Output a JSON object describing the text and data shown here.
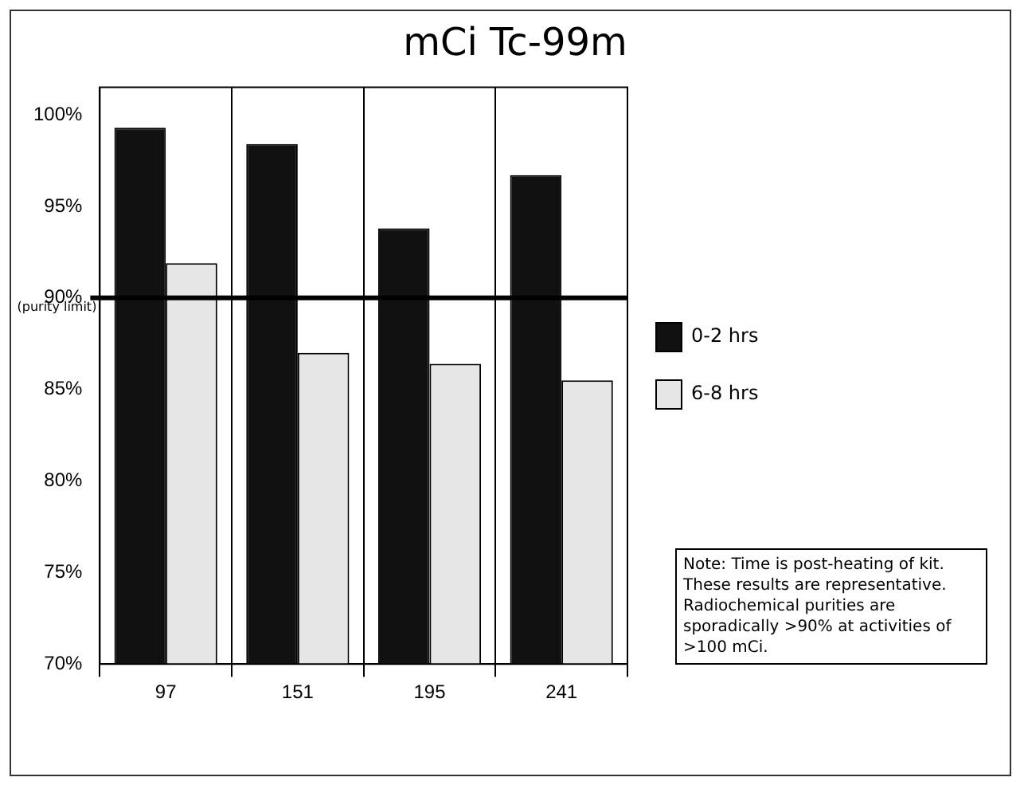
{
  "chart_data": {
    "type": "bar",
    "title": "mCi Tc-99m",
    "categories": [
      "97",
      "151",
      "195",
      "241"
    ],
    "series": [
      {
        "name": "0-2 hrs",
        "color": "#111111",
        "values": [
          99.3,
          98.4,
          93.8,
          96.7
        ]
      },
      {
        "name": "6-8 hrs",
        "color": "#e6e6e6",
        "values": [
          91.9,
          87.0,
          86.4,
          85.5
        ]
      }
    ],
    "ylim": [
      70,
      101.5
    ],
    "yticks": [
      {
        "value": 70,
        "label": "70%"
      },
      {
        "value": 75,
        "label": "75%"
      },
      {
        "value": 80,
        "label": "80%"
      },
      {
        "value": 85,
        "label": "85%"
      },
      {
        "value": 90,
        "label": "90%"
      },
      {
        "value": 95,
        "label": "95%"
      },
      {
        "value": 100,
        "label": "100%"
      }
    ],
    "ref_lines": [
      {
        "axis": "y",
        "value": 90,
        "label": "(purity limit)",
        "color": "#000000"
      }
    ],
    "grid": "x",
    "legend": "right",
    "annotations": [
      "Note: Time is post-heating of kit.  These results are representative. Radiochemical purities are sporadically >90% at activities of >100 mCi."
    ]
  }
}
